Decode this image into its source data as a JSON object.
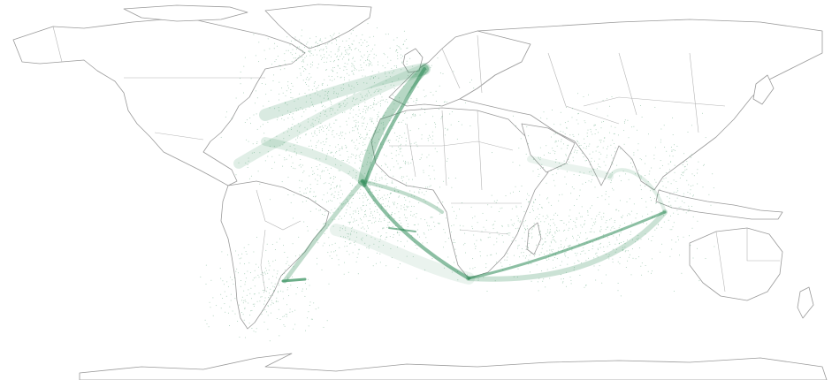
{
  "map": {
    "projection": "equirectangular",
    "region": "world",
    "track_color": "#2e8b57",
    "land_fill": "#ffffff",
    "coastline_color": "#9a9a9a",
    "background": "#ffffff",
    "legend": "none",
    "gridlines": "off",
    "labels": "none"
  }
}
